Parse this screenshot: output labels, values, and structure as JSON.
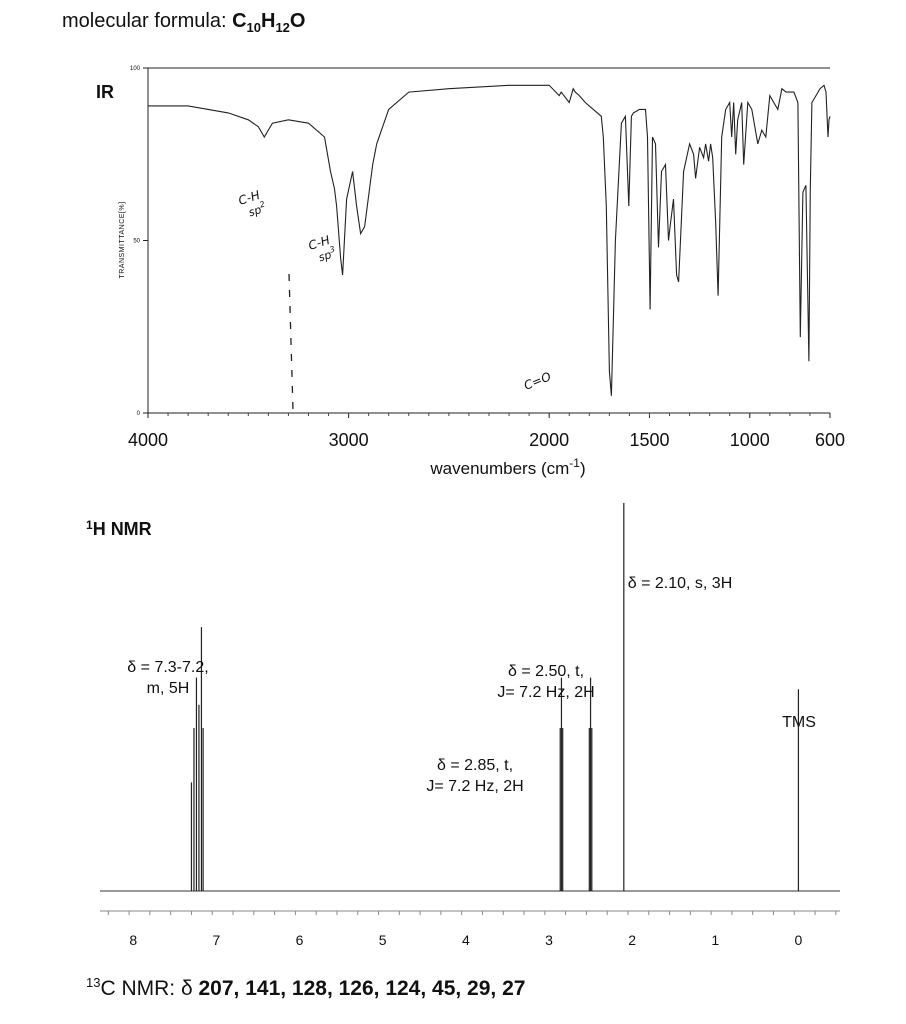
{
  "header": {
    "formula_label": "molecular formula: ",
    "formula_parts": [
      {
        "text": "C",
        "sub": false
      },
      {
        "text": "10",
        "sub": true
      },
      {
        "text": "H",
        "sub": false
      },
      {
        "text": "12",
        "sub": true
      },
      {
        "text": "O",
        "sub": false
      }
    ]
  },
  "chart_data": [
    {
      "type": "line",
      "title": "IR",
      "xlabel": "wavenumbers (cm",
      "xlabel_sup": "-1",
      "xlabel_close": ")",
      "ylabel": "TRANSMITTANCE[%]",
      "xlim": [
        4000,
        600
      ],
      "ylim": [
        0,
        100
      ],
      "x_ticks": [
        4000,
        3000,
        2000,
        1500,
        1000,
        600
      ],
      "y_ticks": [
        0,
        50,
        100
      ],
      "series": [
        {
          "x": [
            4000,
            3800,
            3600,
            3500,
            3450,
            3420,
            3380,
            3300,
            3200,
            3120,
            3090,
            3070,
            3060,
            3040,
            3030,
            3010,
            2980,
            2960,
            2940,
            2920,
            2880,
            2860,
            2800,
            2700,
            2500,
            2200,
            2000,
            1950,
            1940,
            1900,
            1880,
            1870,
            1850,
            1820,
            1780,
            1740,
            1730,
            1715,
            1700,
            1690,
            1670,
            1640,
            1620,
            1603,
            1590,
            1580,
            1550,
            1520,
            1510,
            1497,
            1485,
            1470,
            1455,
            1440,
            1420,
            1405,
            1395,
            1380,
            1365,
            1355,
            1330,
            1300,
            1280,
            1270,
            1250,
            1230,
            1220,
            1205,
            1195,
            1185,
            1170,
            1158,
            1140,
            1120,
            1100,
            1090,
            1080,
            1070,
            1060,
            1040,
            1030,
            1010,
            990,
            960,
            940,
            920,
            900,
            860,
            840,
            820,
            780,
            760,
            748,
            735,
            720,
            705,
            698,
            690,
            670,
            650,
            630,
            620,
            610,
            605,
            600
          ],
          "y": [
            89,
            89,
            87,
            85,
            83,
            80,
            84,
            85,
            84,
            80,
            70,
            65,
            60,
            45,
            40,
            62,
            70,
            60,
            52,
            54,
            72,
            78,
            88,
            93,
            94,
            95,
            95,
            92,
            93,
            90,
            94,
            93,
            92,
            90,
            88,
            86,
            80,
            60,
            12,
            5,
            50,
            84,
            86,
            60,
            86,
            87,
            88,
            88,
            80,
            30,
            80,
            78,
            48,
            70,
            72,
            50,
            55,
            62,
            40,
            38,
            70,
            78,
            75,
            68,
            77,
            74,
            78,
            73,
            78,
            74,
            55,
            34,
            80,
            88,
            90,
            80,
            90,
            75,
            85,
            90,
            72,
            90,
            88,
            78,
            82,
            80,
            92,
            88,
            94,
            93,
            93,
            90,
            22,
            64,
            66,
            15,
            65,
            90,
            92,
            94,
            95,
            93,
            80,
            85,
            86
          ]
        }
      ],
      "annotations": [
        {
          "text": "C-H",
          "sub": "sp",
          "sup": "2"
        },
        {
          "text": "C-H",
          "sub": "sp",
          "sup": "3"
        },
        {
          "text": "C=O"
        }
      ]
    },
    {
      "type": "line",
      "title_sup": "1",
      "title": "H NMR",
      "xlim": [
        8.4,
        -0.5
      ],
      "x_ticks": [
        8,
        7,
        6,
        5,
        4,
        3,
        2,
        1,
        0
      ],
      "peaks": [
        {
          "shift": 7.3,
          "height": 0.28
        },
        {
          "shift": 7.27,
          "height": 0.42
        },
        {
          "shift": 7.24,
          "height": 0.55
        },
        {
          "shift": 7.21,
          "height": 0.48
        },
        {
          "shift": 7.18,
          "height": 0.68
        },
        {
          "shift": 7.16,
          "height": 0.42
        },
        {
          "shift": 2.865,
          "height": 0.42
        },
        {
          "shift": 2.85,
          "height": 0.55
        },
        {
          "shift": 2.835,
          "height": 0.42
        },
        {
          "shift": 2.515,
          "height": 0.42
        },
        {
          "shift": 2.5,
          "height": 0.55
        },
        {
          "shift": 2.485,
          "height": 0.42
        },
        {
          "shift": 2.1,
          "height": 1.0
        },
        {
          "shift": 0.0,
          "height": 0.52
        }
      ],
      "labels": [
        {
          "lines": [
            "δ = 7.3-7.2,",
            "m, 5H"
          ]
        },
        {
          "lines": [
            "δ = 2.85, t,",
            "J= 7.2 Hz, 2H"
          ]
        },
        {
          "lines": [
            "δ = 2.50, t,",
            "J= 7.2 Hz, 2H"
          ]
        },
        {
          "lines": [
            "δ = 2.10, s, 3H"
          ]
        },
        {
          "lines": [
            "TMS"
          ]
        }
      ]
    }
  ],
  "footer": {
    "cnmr_sup": "13",
    "cnmr_label": "C NMR: δ ",
    "cnmr_values": "207, 141, 128, 126, 124, 45, 29, 27"
  }
}
